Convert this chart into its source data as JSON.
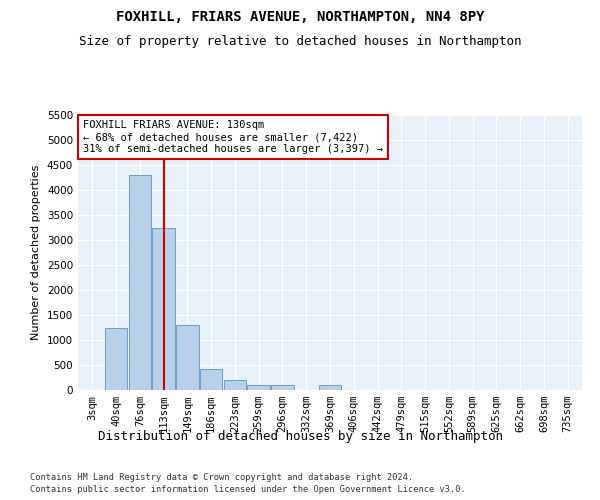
{
  "title": "FOXHILL, FRIARS AVENUE, NORTHAMPTON, NN4 8PY",
  "subtitle": "Size of property relative to detached houses in Northampton",
  "xlabel": "Distribution of detached houses by size in Northampton",
  "ylabel": "Number of detached properties",
  "footnote1": "Contains HM Land Registry data © Crown copyright and database right 2024.",
  "footnote2": "Contains public sector information licensed under the Open Government Licence v3.0.",
  "categories": [
    "3sqm",
    "40sqm",
    "76sqm",
    "113sqm",
    "149sqm",
    "186sqm",
    "223sqm",
    "259sqm",
    "296sqm",
    "332sqm",
    "369sqm",
    "406sqm",
    "442sqm",
    "479sqm",
    "515sqm",
    "552sqm",
    "589sqm",
    "625sqm",
    "662sqm",
    "698sqm",
    "735sqm"
  ],
  "values": [
    0,
    1250,
    4300,
    3250,
    1300,
    430,
    200,
    100,
    100,
    0,
    100,
    0,
    0,
    0,
    0,
    0,
    0,
    0,
    0,
    0,
    0
  ],
  "bar_color": "#b8d0e8",
  "bar_edge_color": "#6aa0cc",
  "vline_x": 3,
  "vline_color": "#cc0000",
  "annotation_text": "FOXHILL FRIARS AVENUE: 130sqm\n← 68% of detached houses are smaller (7,422)\n31% of semi-detached houses are larger (3,397) →",
  "annotation_box_color": "white",
  "annotation_box_edge_color": "#cc0000",
  "ylim": [
    0,
    5500
  ],
  "yticks": [
    0,
    500,
    1000,
    1500,
    2000,
    2500,
    3000,
    3500,
    4000,
    4500,
    5000,
    5500
  ],
  "background_color": "#e8f0f8",
  "grid_color": "white",
  "title_fontsize": 10,
  "subtitle_fontsize": 9,
  "xlabel_fontsize": 9,
  "ylabel_fontsize": 8,
  "tick_fontsize": 7.5,
  "annot_fontsize": 7.5
}
